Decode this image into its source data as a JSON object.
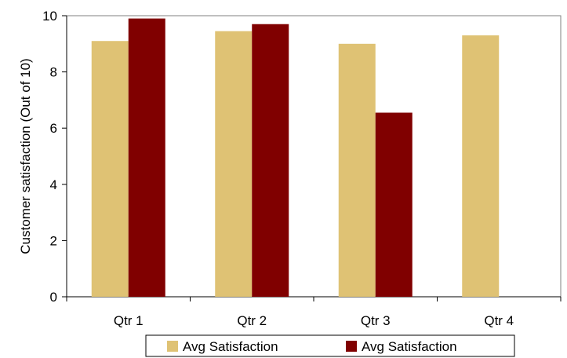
{
  "chart_data": {
    "type": "bar",
    "categories": [
      "Qtr 1",
      "Qtr 2",
      "Qtr 3",
      "Qtr 4"
    ],
    "series": [
      {
        "name": "Avg Satisfaction",
        "color": "#dfc274",
        "values": [
          9.1,
          9.45,
          9.0,
          9.3
        ]
      },
      {
        "name": "Avg Satisfaction",
        "color": "#800000",
        "values": [
          9.9,
          9.7,
          6.55,
          null
        ]
      }
    ],
    "xlabel": "",
    "ylabel": "Customer satisfaction (Out of 10)",
    "ylim": [
      0,
      10
    ],
    "yticks": [
      "0",
      "2",
      "4",
      "6",
      "8",
      "10"
    ],
    "grid": false,
    "legend_position": "bottom"
  }
}
